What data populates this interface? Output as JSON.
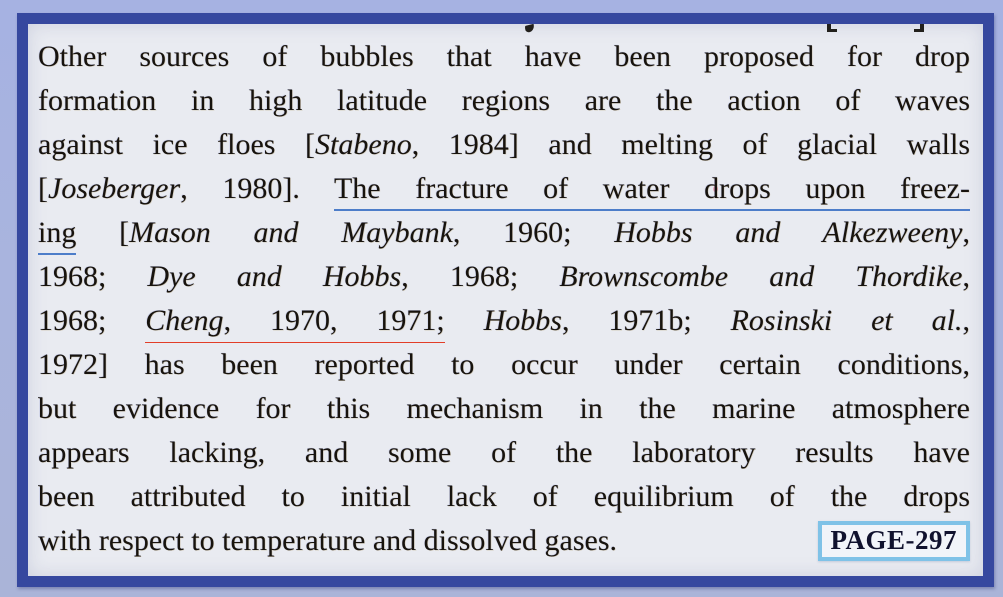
{
  "document": {
    "colors": {
      "background": "#a9b4de",
      "frame_border": "#36489f",
      "paper": "#e9ebf1",
      "text": "#17130e",
      "blue_underline": "#4d7dc9",
      "red_underline": "#e23e28",
      "badge_border": "#7fc2e7",
      "badge_text": "#10122e"
    },
    "page_badge": "PAGE-297",
    "lines": [
      {
        "segments": [
          {
            "t": "Other sources of bubbles that have been proposed for drop"
          }
        ]
      },
      {
        "segments": [
          {
            "t": "formation in high latitude regions are the action of waves"
          }
        ]
      },
      {
        "segments": [
          {
            "t": "against ice floes ["
          },
          {
            "t": "Stabeno",
            "i": true
          },
          {
            "t": ", 1984] and melting of glacial walls"
          }
        ]
      },
      {
        "segments": [
          {
            "t": "["
          },
          {
            "t": "Joseberger",
            "i": true
          },
          {
            "t": ", 1980]. "
          },
          {
            "t": "The fracture of water drops upon freez-",
            "u": "blue"
          }
        ]
      },
      {
        "segments": [
          {
            "t": "ing",
            "u": "blue"
          },
          {
            "t": " ["
          },
          {
            "t": "Mason and Maybank",
            "i": true
          },
          {
            "t": ", 1960; "
          },
          {
            "t": "Hobbs and Alkezweeny",
            "i": true
          },
          {
            "t": ","
          }
        ]
      },
      {
        "segments": [
          {
            "t": "1968; "
          },
          {
            "t": "Dye and Hobbs",
            "i": true
          },
          {
            "t": ", 1968; "
          },
          {
            "t": "Brownscombe and Thordike",
            "i": true
          },
          {
            "t": ","
          }
        ]
      },
      {
        "segments": [
          {
            "t": "1968; "
          },
          {
            "t": "Cheng",
            "i": true,
            "u": "red"
          },
          {
            "t": ", 1970, 1971;",
            "u": "red"
          },
          {
            "t": " "
          },
          {
            "t": "Hobbs",
            "i": true
          },
          {
            "t": ", 1971b; "
          },
          {
            "t": "Rosinski et al.",
            "i": true
          },
          {
            "t": ","
          }
        ]
      },
      {
        "segments": [
          {
            "t": "1972] has been reported to occur under certain conditions,"
          }
        ]
      },
      {
        "segments": [
          {
            "t": "but evidence for this mechanism in the marine atmosphere"
          }
        ]
      },
      {
        "segments": [
          {
            "t": "appears lacking, and some of the laboratory results have"
          }
        ]
      },
      {
        "segments": [
          {
            "t": "been attributed to initial lack of equilibrium of the drops"
          }
        ]
      },
      {
        "justify": false,
        "badge": "PAGE-297",
        "segments": [
          {
            "t": "with respect to temperature and dissolved gases."
          }
        ]
      }
    ]
  }
}
